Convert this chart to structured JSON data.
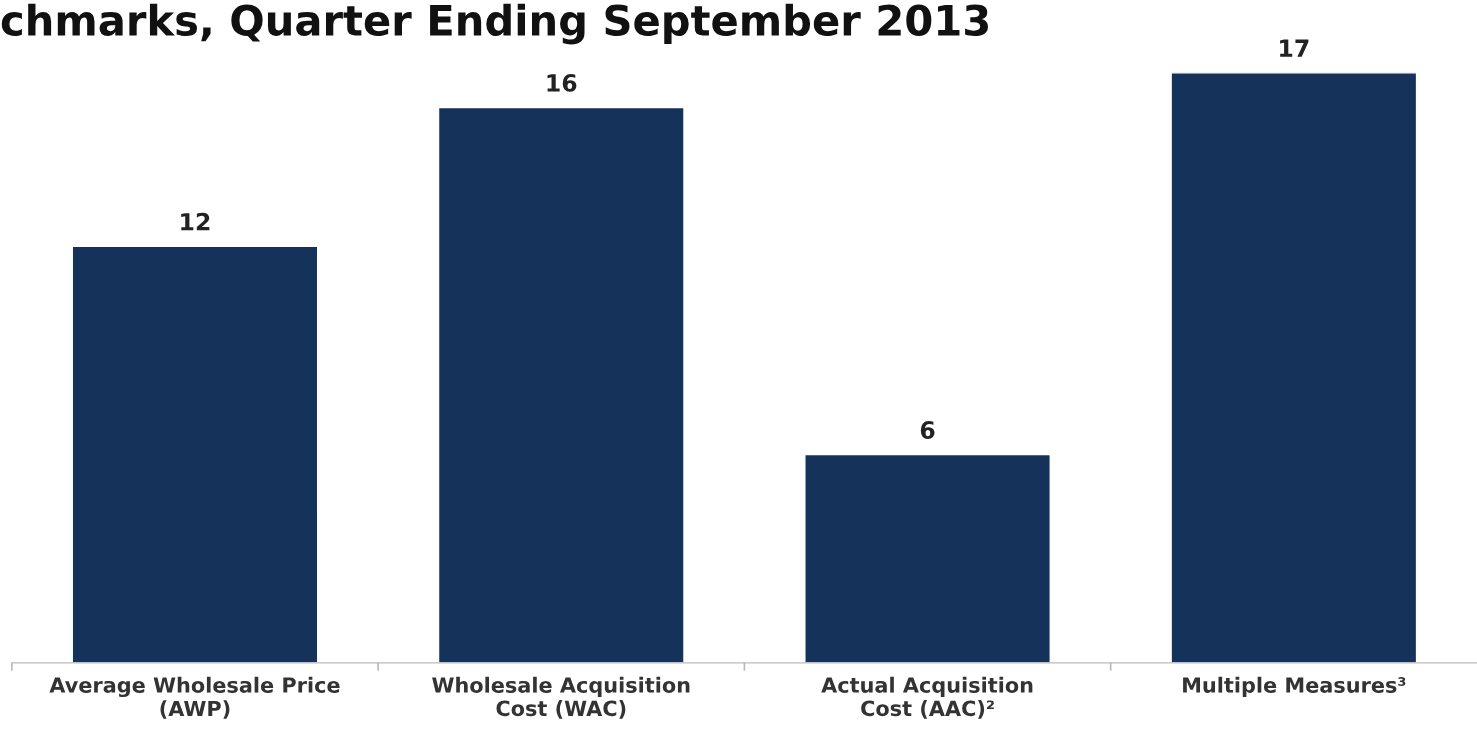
{
  "chart_data": {
    "type": "bar",
    "title": "chmarks, Quarter Ending September 2013",
    "categories": [
      "Average Wholesale Price\n(AWP)",
      "Wholesale Acquisition\nCost (WAC)",
      "Actual Acquisition\nCost (AAC)²",
      "Multiple Measures³"
    ],
    "values": [
      12,
      16,
      6,
      17
    ],
    "color": "#15325a",
    "data_labels": true,
    "grid": false,
    "legend": false
  }
}
